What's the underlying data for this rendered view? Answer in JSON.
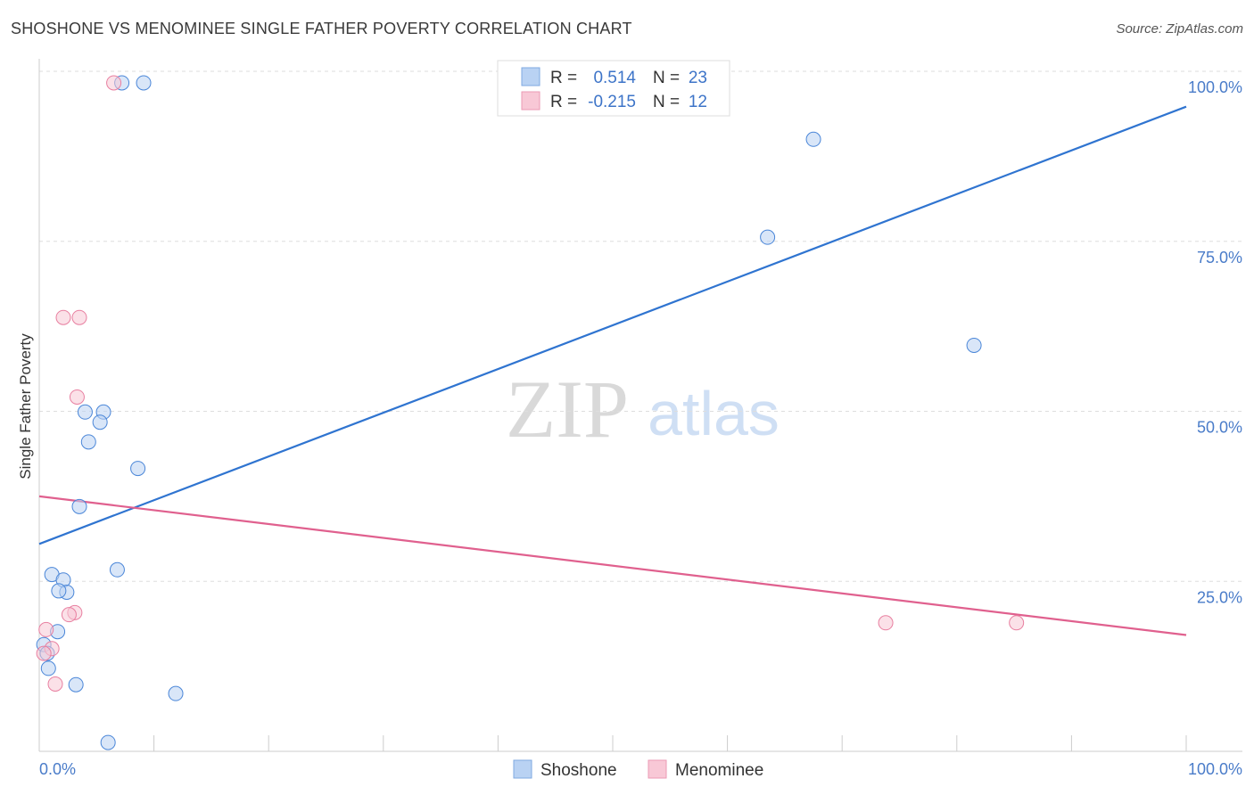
{
  "header": {
    "title": "SHOSHONE VS MENOMINEE SINGLE FATHER POVERTY CORRELATION CHART",
    "source": "Source: ZipAtlas.com"
  },
  "watermark": {
    "zip": "ZIP",
    "atlas": "atlas"
  },
  "chart_data": {
    "type": "scatter",
    "title": "SHOSHONE VS MENOMINEE SINGLE FATHER POVERTY CORRELATION CHART",
    "xlabel": "",
    "ylabel": "Single Father Poverty",
    "xlim": [
      0,
      100
    ],
    "ylim": [
      0,
      100
    ],
    "x_tick_labels": [
      "0.0%",
      "100.0%"
    ],
    "y_ticks": [
      25,
      50,
      75,
      100
    ],
    "y_tick_labels": [
      "25.0%",
      "50.0%",
      "75.0%",
      "100.0%"
    ],
    "grid": true,
    "legend_top": {
      "rows": [
        {
          "r_label": "R =",
          "r_value": "0.514",
          "n_label": "N =",
          "n_value": "23",
          "color": "#9dc0f0"
        },
        {
          "r_label": "R =",
          "r_value": "-0.215",
          "n_label": "N =",
          "n_value": "12",
          "color": "#f5b3c6"
        }
      ]
    },
    "legend_bottom": [
      "Shoshone",
      "Menominee"
    ],
    "series": [
      {
        "name": "Shoshone",
        "color": "#4a86d8",
        "fill": "#b9d2f3",
        "trend": {
          "x0": 0,
          "y0": 30.5,
          "x1": 100,
          "y1": 94.8,
          "color": "#2f74d0"
        },
        "points": [
          [
            7.2,
            98.3
          ],
          [
            9.1,
            98.3
          ],
          [
            67.5,
            90.0
          ],
          [
            63.5,
            75.6
          ],
          [
            81.5,
            59.7
          ],
          [
            4.0,
            49.9
          ],
          [
            5.6,
            49.9
          ],
          [
            5.3,
            48.4
          ],
          [
            4.3,
            45.5
          ],
          [
            8.6,
            41.6
          ],
          [
            3.5,
            36.0
          ],
          [
            6.8,
            26.7
          ],
          [
            1.1,
            26.0
          ],
          [
            2.1,
            25.2
          ],
          [
            2.4,
            23.4
          ],
          [
            1.7,
            23.6
          ],
          [
            1.6,
            17.6
          ],
          [
            0.4,
            15.7
          ],
          [
            0.7,
            14.4
          ],
          [
            0.8,
            12.2
          ],
          [
            3.2,
            9.8
          ],
          [
            11.9,
            8.5
          ],
          [
            6.0,
            1.3
          ]
        ]
      },
      {
        "name": "Menominee",
        "color": "#e87fa0",
        "fill": "#f8c8d6",
        "trend": {
          "x0": 0,
          "y0": 37.5,
          "x1": 100,
          "y1": 17.1,
          "color": "#e0608e"
        },
        "points": [
          [
            6.5,
            98.3
          ],
          [
            2.1,
            63.8
          ],
          [
            3.5,
            63.8
          ],
          [
            3.3,
            52.1
          ],
          [
            3.1,
            20.4
          ],
          [
            2.6,
            20.1
          ],
          [
            73.8,
            18.9
          ],
          [
            85.2,
            18.9
          ],
          [
            0.6,
            17.9
          ],
          [
            1.1,
            15.1
          ],
          [
            0.4,
            14.4
          ],
          [
            1.4,
            9.9
          ]
        ]
      }
    ]
  }
}
